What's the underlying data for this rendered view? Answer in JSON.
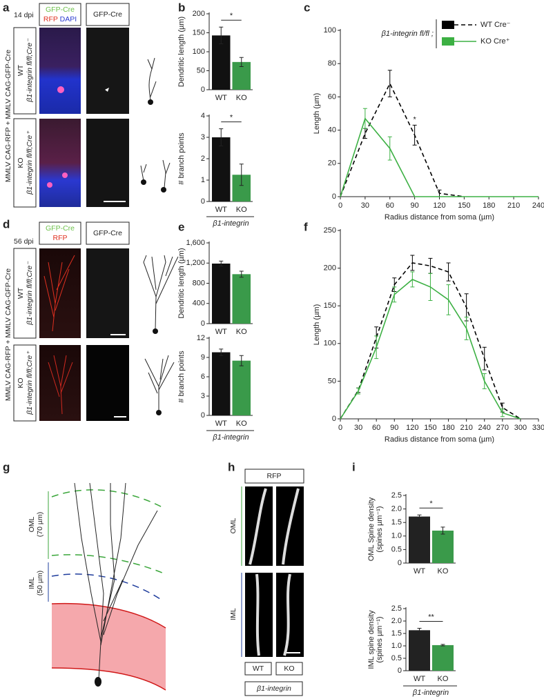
{
  "figure": {
    "panels": [
      "a",
      "b",
      "c",
      "d",
      "e",
      "f",
      "g",
      "h",
      "i"
    ],
    "a": {
      "dpi": "14 dpi",
      "header": [
        [
          "GFP-Cre",
          "RFP",
          "DAPI"
        ],
        "GFP-Cre"
      ],
      "side": "MMLV CAG-RFP + MMLV CAG-GFP-Cre",
      "rows": [
        {
          "group": "WT",
          "genotype": "β1-integrin fl/fl;Cre⁻"
        },
        {
          "group": "KO",
          "genotype": "β1-integrin fl/fl;Cre⁺"
        }
      ]
    },
    "d": {
      "dpi": "56 dpi",
      "header": [
        [
          "GFP-Cre",
          "RFP"
        ],
        "GFP-Cre"
      ],
      "side": "MMLV CAG-RFP + MMLV CAG-GFP-Cre",
      "rows": [
        {
          "group": "WT",
          "genotype": "β1-integrin fl/fl;Cre⁻"
        },
        {
          "group": "KO",
          "genotype": "β1-integrin fl/fl;Cre⁺"
        }
      ]
    },
    "g": {
      "layers": [
        [
          "OML",
          "(70 µm)"
        ],
        [
          "IML",
          "(50 µm)"
        ]
      ]
    },
    "h": {
      "header": "RFP",
      "rows": [
        "OML",
        "IML"
      ],
      "columns": [
        "WT",
        "KO"
      ],
      "group": "β1-integrin"
    }
  },
  "chart_data": [
    {
      "type": "bar",
      "ylabel": "Dendritic length (µm)",
      "categories": [
        "WT",
        "KO"
      ],
      "values": [
        143,
        73
      ],
      "errors": [
        22,
        12
      ],
      "colors": [
        "#111111",
        "#3a9a4a"
      ],
      "ylim": [
        0,
        200
      ],
      "yticks": [
        0,
        50,
        100,
        150,
        200
      ],
      "significance": "*"
    },
    {
      "type": "bar",
      "ylabel": "# branch points",
      "categories": [
        "WT",
        "KO"
      ],
      "values": [
        3.0,
        1.25
      ],
      "errors": [
        0.4,
        0.5
      ],
      "colors": [
        "#111111",
        "#3a9a4a"
      ],
      "ylim": [
        0,
        4
      ],
      "yticks": [
        0,
        1,
        2,
        3,
        4
      ],
      "significance": "*",
      "group": "β1-integrin"
    },
    {
      "type": "line",
      "xlabel": "Radius distance from soma (µm)",
      "ylabel": "Length (µm)",
      "x": [
        0,
        30,
        60,
        90,
        120,
        150,
        180,
        210,
        240
      ],
      "xlim": [
        0,
        240
      ],
      "xticks": [
        0,
        30,
        60,
        90,
        120,
        150,
        180,
        210,
        240
      ],
      "ylim": [
        0,
        100
      ],
      "yticks": [
        0,
        20,
        40,
        60,
        80,
        100
      ],
      "legend": "upper right",
      "legend_title": "β1-integrin fl/fl ;",
      "annotation": "*",
      "series": [
        {
          "name": "WT Cre⁻",
          "color": "#000000",
          "line_style": "dashed",
          "values": [
            0,
            38,
            68,
            37,
            2,
            0,
            null,
            null,
            null
          ],
          "errors": [
            null,
            3,
            8,
            6,
            2,
            null,
            null,
            null,
            null
          ]
        },
        {
          "name": "KO Cre⁺",
          "color": "#3cb043",
          "line_style": "solid",
          "values": [
            0,
            47,
            29,
            0,
            0,
            0,
            0,
            0,
            0
          ],
          "errors": [
            null,
            6,
            7,
            null,
            null,
            null,
            null,
            null,
            null
          ]
        }
      ]
    },
    {
      "type": "bar",
      "ylabel": "Dendritic length (µm)",
      "categories": [
        "WT",
        "KO"
      ],
      "values": [
        1190,
        980
      ],
      "errors": [
        50,
        60
      ],
      "colors": [
        "#111111",
        "#3a9a4a"
      ],
      "ylim": [
        0,
        1600
      ],
      "yticks": [
        0,
        400,
        800,
        {
          "value": 1200,
          "label": "1,200"
        },
        {
          "value": 1600,
          "label": "1,600"
        }
      ]
    },
    {
      "type": "bar",
      "ylabel": "# branch points",
      "categories": [
        "WT",
        "KO"
      ],
      "values": [
        9.8,
        8.5
      ],
      "errors": [
        0.5,
        0.8
      ],
      "colors": [
        "#111111",
        "#3a9a4a"
      ],
      "ylim": [
        0,
        12
      ],
      "yticks": [
        0,
        3,
        6,
        9,
        12
      ],
      "group": "β1-integrin"
    },
    {
      "type": "line",
      "xlabel": "Radius distance from soma (µm)",
      "ylabel": "Length (µm)",
      "x": [
        0,
        30,
        60,
        90,
        120,
        150,
        180,
        210,
        240,
        270,
        300
      ],
      "xlim": [
        0,
        330
      ],
      "xticks": [
        0,
        30,
        60,
        90,
        120,
        150,
        180,
        210,
        240,
        270,
        300,
        330
      ],
      "ylim": [
        0,
        250
      ],
      "yticks": [
        0,
        50,
        100,
        150,
        200,
        250
      ],
      "series": [
        {
          "name": "WT",
          "color": "#000000",
          "line_style": "dashed",
          "values": [
            0,
            38,
            108,
            178,
            207,
            203,
            195,
            148,
            80,
            15,
            0
          ],
          "errors": [
            null,
            3,
            14,
            9,
            10,
            10,
            12,
            18,
            15,
            6,
            null
          ]
        },
        {
          "name": "KO",
          "color": "#3cb043",
          "line_style": "solid",
          "values": [
            0,
            37,
            95,
            165,
            185,
            175,
            158,
            120,
            50,
            8,
            0
          ],
          "errors": [
            null,
            4,
            15,
            10,
            10,
            18,
            20,
            15,
            10,
            5,
            null
          ]
        }
      ]
    },
    {
      "type": "bar",
      "ylabel": [
        "OML Spine density",
        "(spines µm⁻¹)"
      ],
      "categories": [
        "WT",
        "KO"
      ],
      "values": [
        1.72,
        1.2
      ],
      "errors": [
        0.06,
        0.13
      ],
      "colors": [
        "#222222",
        "#3a9a4a"
      ],
      "ylim": [
        0,
        2.5
      ],
      "yticks": [
        0,
        0.5,
        {
          "value": 1,
          "label": "1.0"
        },
        1.5,
        {
          "value": 2,
          "label": "2.0"
        },
        2.5
      ],
      "significance": "*"
    },
    {
      "type": "bar",
      "ylabel": [
        "IML spine density",
        "(spines µm⁻¹)"
      ],
      "categories": [
        "WT",
        "KO"
      ],
      "values": [
        1.63,
        1.03
      ],
      "errors": [
        0.08,
        0.03
      ],
      "colors": [
        "#222222",
        "#3a9a4a"
      ],
      "ylim": [
        0,
        2.5
      ],
      "yticks": [
        0,
        0.5,
        {
          "value": 1,
          "label": "1.0"
        },
        1.5,
        {
          "value": 2,
          "label": "2.0"
        },
        2.5
      ],
      "significance": "**",
      "group": "β1-integrin"
    }
  ]
}
